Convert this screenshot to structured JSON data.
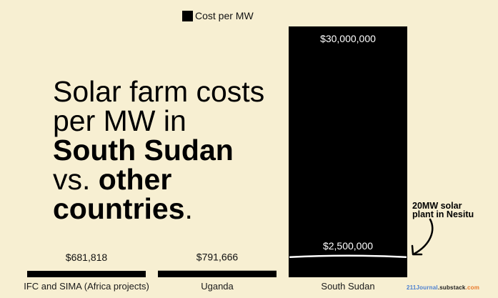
{
  "headline": {
    "line1": "Solar farm costs",
    "line2": "per MW in",
    "line3": "South Sudan",
    "line4_plain": "vs. ",
    "line4_bold": "other",
    "line5_bold": "countries",
    "line5_tail": "."
  },
  "annotation": {
    "line1": "20MW solar",
    "line2": "plant in Nesitu"
  },
  "footer": {
    "part1": "211Journal",
    "part2": ".substack",
    "part3": ".com"
  },
  "colors": {
    "background": "#f7efd2",
    "bar": "#000000",
    "bar_label_inside": "#ffffff",
    "bar_label_outside": "#111111"
  },
  "chart_data": {
    "type": "bar",
    "categories": [
      "IFC and SIMA (Africa projects)",
      "Uganda",
      "South Sudan"
    ],
    "series": [
      {
        "name": "Cost per MW",
        "values": [
          681818,
          791666,
          30000000
        ],
        "labels": [
          "$681,818",
          "$791,666",
          "$30,000,000"
        ]
      }
    ],
    "reference_marker": {
      "category": "South Sudan",
      "value": 2500000,
      "label": "$2,500,000"
    },
    "ylim": [
      0,
      30000000
    ],
    "grid": false,
    "legend": "top-center",
    "title": "",
    "xlabel": "",
    "ylabel": ""
  }
}
